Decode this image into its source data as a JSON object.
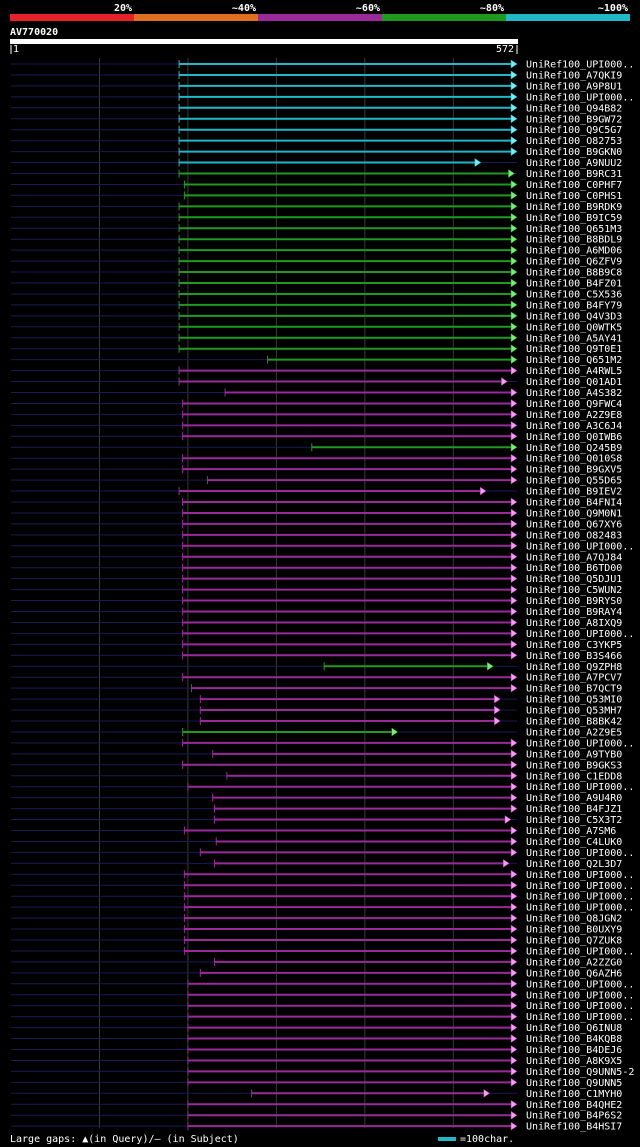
{
  "query": {
    "id": "AV770020",
    "start": "1",
    "end": "572",
    "length": 572
  },
  "scale": [
    {
      "label": "20%",
      "color": "#e8202a"
    },
    {
      "label": "~40%",
      "color": "#e0701f"
    },
    {
      "label": "~60%",
      "color": "#9a2a9a"
    },
    {
      "label": "~80%",
      "color": "#1f9a1f"
    },
    {
      "label": "~100%",
      "color": "#1fb8c8"
    }
  ],
  "footer": {
    "gaps_text": "Large gaps: ▲(in Query)/— (in Subject)",
    "scale_text": "=100char."
  },
  "chart_data": {
    "type": "alignment-overview",
    "query_length": 572,
    "hits": [
      {
        "name": "UniRef100_UPI000..",
        "start": 190,
        "end": 572,
        "cat": "c"
      },
      {
        "name": "UniRef100_A7QKI9",
        "start": 190,
        "end": 572,
        "cat": "c"
      },
      {
        "name": "UniRef100_A9P8U1",
        "start": 190,
        "end": 572,
        "cat": "c"
      },
      {
        "name": "UniRef100_UPI000..",
        "start": 190,
        "end": 572,
        "cat": "c"
      },
      {
        "name": "UniRef100_Q94B82",
        "start": 190,
        "end": 572,
        "cat": "c"
      },
      {
        "name": "UniRef100_B9GW72",
        "start": 190,
        "end": 572,
        "cat": "c"
      },
      {
        "name": "UniRef100_Q9C5G7",
        "start": 190,
        "end": 572,
        "cat": "c"
      },
      {
        "name": "UniRef100_O82753",
        "start": 190,
        "end": 572,
        "cat": "c"
      },
      {
        "name": "UniRef100_B9GKN0",
        "start": 190,
        "end": 572,
        "cat": "c"
      },
      {
        "name": "UniRef100_A9NUU2",
        "start": 190,
        "end": 530,
        "cat": "c"
      },
      {
        "name": "UniRef100_B9RC31",
        "start": 190,
        "end": 568,
        "cat": "g"
      },
      {
        "name": "UniRef100_C0PHF7",
        "start": 196,
        "end": 580,
        "cat": "g"
      },
      {
        "name": "UniRef100_C0PHS1",
        "start": 196,
        "end": 580,
        "cat": "g"
      },
      {
        "name": "UniRef100_B9RDK9",
        "start": 190,
        "end": 608,
        "cat": "g"
      },
      {
        "name": "UniRef100_B9IC59",
        "start": 190,
        "end": 572,
        "cat": "g"
      },
      {
        "name": "UniRef100_Q651M3",
        "start": 190,
        "end": 572,
        "cat": "g"
      },
      {
        "name": "UniRef100_B8BDL9",
        "start": 190,
        "end": 572,
        "cat": "g"
      },
      {
        "name": "UniRef100_A6MD06",
        "start": 190,
        "end": 576,
        "cat": "g"
      },
      {
        "name": "UniRef100_Q6ZFV9",
        "start": 190,
        "end": 576,
        "cat": "g"
      },
      {
        "name": "UniRef100_B8B9C8",
        "start": 190,
        "end": 576,
        "cat": "g"
      },
      {
        "name": "UniRef100_B4FZ01",
        "start": 190,
        "end": 580,
        "cat": "g"
      },
      {
        "name": "UniRef100_C5X536",
        "start": 190,
        "end": 576,
        "cat": "g"
      },
      {
        "name": "UniRef100_B4FY79",
        "start": 190,
        "end": 576,
        "cat": "g"
      },
      {
        "name": "UniRef100_Q4V3D3",
        "start": 190,
        "end": 576,
        "cat": "g"
      },
      {
        "name": "UniRef100_Q0WTK5",
        "start": 190,
        "end": 576,
        "cat": "g"
      },
      {
        "name": "UniRef100_A5AY41",
        "start": 190,
        "end": 576,
        "cat": "g"
      },
      {
        "name": "UniRef100_Q9T0E1",
        "start": 190,
        "end": 572,
        "cat": "g"
      },
      {
        "name": "UniRef100_Q651M2",
        "start": 290,
        "end": 572,
        "cat": "g"
      },
      {
        "name": "UniRef100_A4RWL5",
        "start": 190,
        "end": 576,
        "cat": "m"
      },
      {
        "name": "UniRef100_Q01AD1",
        "start": 190,
        "end": 560,
        "cat": "m"
      },
      {
        "name": "UniRef100_A4S382",
        "start": 242,
        "end": 608,
        "cat": "m"
      },
      {
        "name": "UniRef100_Q9FWC4",
        "start": 194,
        "end": 590,
        "cat": "m"
      },
      {
        "name": "UniRef100_A2Z9E8",
        "start": 194,
        "end": 590,
        "cat": "m"
      },
      {
        "name": "UniRef100_A3C6J4",
        "start": 194,
        "end": 590,
        "cat": "m"
      },
      {
        "name": "UniRef100_Q0IWB6",
        "start": 194,
        "end": 590,
        "cat": "m"
      },
      {
        "name": "UniRef100_Q245B9",
        "start": 340,
        "end": 584,
        "cat": "g"
      },
      {
        "name": "UniRef100_Q010S8",
        "start": 194,
        "end": 604,
        "cat": "m"
      },
      {
        "name": "UniRef100_B9GXV5",
        "start": 194,
        "end": 590,
        "cat": "m"
      },
      {
        "name": "UniRef100_Q55D65",
        "start": 222,
        "end": 582,
        "cat": "m"
      },
      {
        "name": "UniRef100_B9IEV2",
        "start": 190,
        "end": 536,
        "cat": "m"
      },
      {
        "name": "UniRef100_B4FNI4",
        "start": 194,
        "end": 580,
        "cat": "m"
      },
      {
        "name": "UniRef100_Q9M0N1",
        "start": 194,
        "end": 580,
        "cat": "m"
      },
      {
        "name": "UniRef100_Q67XY6",
        "start": 194,
        "end": 580,
        "cat": "m"
      },
      {
        "name": "UniRef100_O82483",
        "start": 194,
        "end": 580,
        "cat": "m"
      },
      {
        "name": "UniRef100_UPI000..",
        "start": 194,
        "end": 610,
        "cat": "m"
      },
      {
        "name": "UniRef100_A7QJ84",
        "start": 194,
        "end": 610,
        "cat": "m"
      },
      {
        "name": "UniRef100_B6TD00",
        "start": 194,
        "end": 580,
        "cat": "m"
      },
      {
        "name": "UniRef100_Q5DJU1",
        "start": 194,
        "end": 600,
        "cat": "m"
      },
      {
        "name": "UniRef100_C5WUN2",
        "start": 194,
        "end": 580,
        "cat": "m"
      },
      {
        "name": "UniRef100_B9RYS0",
        "start": 194,
        "end": 610,
        "cat": "m"
      },
      {
        "name": "UniRef100_B9RAY4",
        "start": 194,
        "end": 580,
        "cat": "m"
      },
      {
        "name": "UniRef100_A8IXQ9",
        "start": 194,
        "end": 604,
        "cat": "m"
      },
      {
        "name": "UniRef100_UPI000..",
        "start": 194,
        "end": 590,
        "cat": "m"
      },
      {
        "name": "UniRef100_C3YKP5",
        "start": 194,
        "end": 580,
        "cat": "m"
      },
      {
        "name": "UniRef100_B3S466",
        "start": 194,
        "end": 580,
        "cat": "m"
      },
      {
        "name": "UniRef100_Q9ZPH8",
        "start": 354,
        "end": 544,
        "cat": "g"
      },
      {
        "name": "UniRef100_A7PCV7",
        "start": 194,
        "end": 600,
        "cat": "m"
      },
      {
        "name": "UniRef100_B7QCT9",
        "start": 204,
        "end": 594,
        "cat": "m"
      },
      {
        "name": "UniRef100_Q53MI0",
        "start": 214,
        "end": 552,
        "cat": "m"
      },
      {
        "name": "UniRef100_Q53MH7",
        "start": 214,
        "end": 552,
        "cat": "m"
      },
      {
        "name": "UniRef100_B8BK42",
        "start": 214,
        "end": 552,
        "cat": "m"
      },
      {
        "name": "UniRef100_A2Z9E5",
        "start": 194,
        "end": 436,
        "cat": "g"
      },
      {
        "name": "UniRef100_UPI000..",
        "start": 194,
        "end": 576,
        "cat": "m"
      },
      {
        "name": "UniRef100_A9TYB0",
        "start": 228,
        "end": 576,
        "cat": "m"
      },
      {
        "name": "UniRef100_B9GKS3",
        "start": 194,
        "end": 608,
        "cat": "m"
      },
      {
        "name": "UniRef100_C1EDD8",
        "start": 244,
        "end": 572,
        "cat": "m"
      },
      {
        "name": "UniRef100_UPI000..",
        "start": 200,
        "end": 576,
        "cat": "m"
      },
      {
        "name": "UniRef100_A9U4R0",
        "start": 228,
        "end": 586,
        "cat": "m"
      },
      {
        "name": "UniRef100_B4FJZ1",
        "start": 230,
        "end": 586,
        "cat": "m"
      },
      {
        "name": "UniRef100_C5X3T2",
        "start": 230,
        "end": 564,
        "cat": "m"
      },
      {
        "name": "UniRef100_A7SM6",
        "start": 196,
        "end": 580,
        "cat": "m"
      },
      {
        "name": "UniRef100_C4LUK0",
        "start": 232,
        "end": 580,
        "cat": "m"
      },
      {
        "name": "UniRef100_UPI000..",
        "start": 214,
        "end": 580,
        "cat": "m"
      },
      {
        "name": "UniRef100_Q2L3D7",
        "start": 230,
        "end": 562,
        "cat": "m"
      },
      {
        "name": "UniRef100_UPI000..",
        "start": 196,
        "end": 580,
        "cat": "m"
      },
      {
        "name": "UniRef100_UPI000..",
        "start": 196,
        "end": 580,
        "cat": "m"
      },
      {
        "name": "UniRef100_UPI000..",
        "start": 196,
        "end": 580,
        "cat": "m"
      },
      {
        "name": "UniRef100_UPI000..",
        "start": 196,
        "end": 580,
        "cat": "m"
      },
      {
        "name": "UniRef100_Q8JGN2",
        "start": 196,
        "end": 604,
        "cat": "m"
      },
      {
        "name": "UniRef100_B0UXY9",
        "start": 196,
        "end": 604,
        "cat": "m"
      },
      {
        "name": "UniRef100_Q7ZUK8",
        "start": 196,
        "end": 604,
        "cat": "m"
      },
      {
        "name": "UniRef100_UPI000..",
        "start": 196,
        "end": 604,
        "cat": "m"
      },
      {
        "name": "UniRef100_A2ZZG0",
        "start": 230,
        "end": 580,
        "cat": "m"
      },
      {
        "name": "UniRef100_Q6AZH6",
        "start": 214,
        "end": 608,
        "cat": "m"
      },
      {
        "name": "UniRef100_UPI000..",
        "start": 200,
        "end": 604,
        "cat": "m"
      },
      {
        "name": "UniRef100_UPI000..",
        "start": 200,
        "end": 580,
        "cat": "m"
      },
      {
        "name": "UniRef100_UPI000..",
        "start": 200,
        "end": 580,
        "cat": "m"
      },
      {
        "name": "UniRef100_UPI000..",
        "start": 200,
        "end": 580,
        "cat": "m"
      },
      {
        "name": "UniRef100_Q6INU8",
        "start": 200,
        "end": 580,
        "cat": "m"
      },
      {
        "name": "UniRef100_B4KQB8",
        "start": 200,
        "end": 586,
        "cat": "m"
      },
      {
        "name": "UniRef100_B4DEJ6",
        "start": 200,
        "end": 580,
        "cat": "m"
      },
      {
        "name": "UniRef100_A8K9X5",
        "start": 200,
        "end": 580,
        "cat": "m"
      },
      {
        "name": "UniRef100_Q9UNN5-2",
        "start": 200,
        "end": 580,
        "cat": "m"
      },
      {
        "name": "UniRef100_Q9UNN5",
        "start": 200,
        "end": 580,
        "cat": "m"
      },
      {
        "name": "UniRef100_C1MYH0",
        "start": 272,
        "end": 540,
        "cat": "m"
      },
      {
        "name": "UniRef100_B4QHE2",
        "start": 200,
        "end": 580,
        "cat": "m"
      },
      {
        "name": "UniRef100_B4P6S2",
        "start": 200,
        "end": 580,
        "cat": "m"
      },
      {
        "name": "UniRef100_B4HSI7",
        "start": 200,
        "end": 580,
        "cat": "m"
      }
    ]
  }
}
